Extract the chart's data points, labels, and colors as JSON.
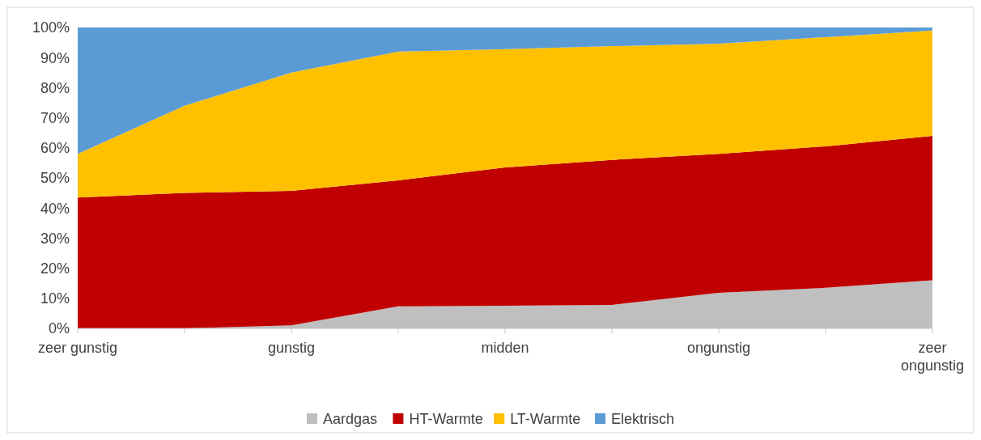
{
  "chart_data": {
    "type": "area",
    "stacked": true,
    "categories": [
      "zeer gunstig",
      null,
      "gunstig",
      null,
      "midden",
      null,
      "ongunstig",
      null,
      "zeer ongunstig"
    ],
    "series": [
      {
        "name": "Aardgas",
        "color": "#bfbfbf",
        "values": [
          0,
          0,
          1,
          7.3,
          7.5,
          7.8,
          11.8,
          13.5,
          16
        ]
      },
      {
        "name": "HT-Warmte",
        "color": "#c00000",
        "values": [
          43.5,
          45,
          44.7,
          41.9,
          46,
          48.2,
          46.2,
          47,
          48
        ]
      },
      {
        "name": "LT-Warmte",
        "color": "#ffc000",
        "values": [
          14.5,
          29,
          39.3,
          42.8,
          39.3,
          37.8,
          36.6,
          36.3,
          35
        ]
      },
      {
        "name": "Elektrisch",
        "color": "#5b9bd5",
        "values": [
          42,
          26,
          15,
          8,
          7.2,
          6.2,
          5.4,
          3.2,
          1
        ]
      }
    ],
    "ylim": [
      0,
      100
    ],
    "yticks": [
      {
        "value": 0,
        "label": "0%"
      },
      {
        "value": 10,
        "label": "10%"
      },
      {
        "value": 20,
        "label": "20%"
      },
      {
        "value": 30,
        "label": "30%"
      },
      {
        "value": 40,
        "label": "40%"
      },
      {
        "value": 50,
        "label": "50%"
      },
      {
        "value": 60,
        "label": "60%"
      },
      {
        "value": 70,
        "label": "70%"
      },
      {
        "value": 80,
        "label": "80%"
      },
      {
        "value": 90,
        "label": "90%"
      },
      {
        "value": 100,
        "label": "100%"
      }
    ],
    "legend": "bottom"
  }
}
